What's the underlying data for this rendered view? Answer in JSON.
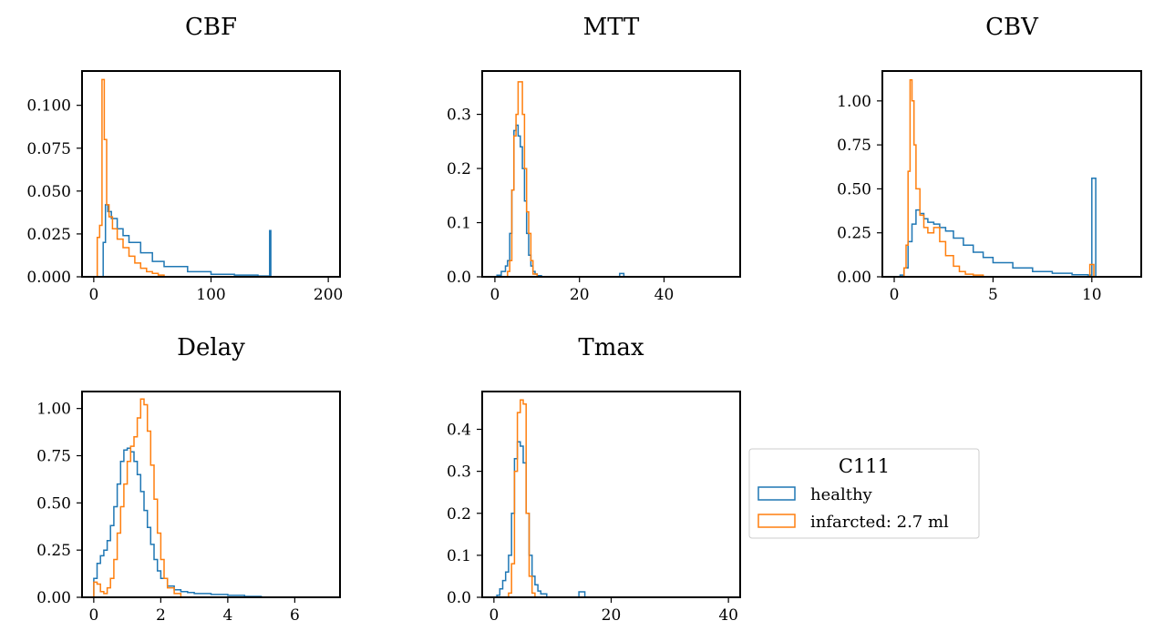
{
  "colors": {
    "healthy": "#1f77b4",
    "infarcted": "#ff7f0e"
  },
  "legend": {
    "title": "C111",
    "placement": "right-center",
    "entries": [
      "healthy",
      "infarcted: 2.7 ml"
    ]
  },
  "chart_data": [
    {
      "type": "histogram",
      "title": "CBF",
      "xlim": [
        -10,
        210
      ],
      "ylim": [
        0,
        0.12
      ],
      "xticks": [
        0,
        100,
        200
      ],
      "yticks": [
        0,
        0.025,
        0.05,
        0.075,
        0.1
      ],
      "ytick_labels": [
        "0.000",
        "0.025",
        "0.050",
        "0.075",
        "0.100"
      ],
      "series": [
        {
          "name": "healthy",
          "x": [
            5,
            8,
            10,
            12,
            15,
            20,
            25,
            30,
            40,
            50,
            60,
            80,
            100,
            120,
            140,
            149,
            150,
            151,
            160
          ],
          "y": [
            0.0,
            0.02,
            0.042,
            0.038,
            0.034,
            0.028,
            0.024,
            0.02,
            0.014,
            0.009,
            0.006,
            0.003,
            0.0015,
            0.001,
            0.0005,
            0.0005,
            0.027,
            0.0,
            0.0
          ]
        },
        {
          "name": "infarcted: 2.7 ml",
          "x": [
            3,
            5,
            7,
            9,
            11,
            13,
            16,
            20,
            25,
            30,
            35,
            40,
            45,
            50,
            55,
            60
          ],
          "y": [
            0.023,
            0.03,
            0.115,
            0.08,
            0.042,
            0.035,
            0.028,
            0.022,
            0.017,
            0.012,
            0.008,
            0.005,
            0.003,
            0.002,
            0.001,
            0.0
          ]
        }
      ]
    },
    {
      "type": "histogram",
      "title": "MTT",
      "xlim": [
        -3,
        58
      ],
      "ylim": [
        0,
        0.38
      ],
      "xticks": [
        0,
        20,
        40
      ],
      "yticks": [
        0,
        0.1,
        0.2,
        0.3
      ],
      "ytick_labels": [
        "0.0",
        "0.1",
        "0.2",
        "0.3"
      ],
      "series": [
        {
          "name": "healthy",
          "x": [
            0.5,
            1.5,
            2.5,
            3,
            3.5,
            4,
            4.5,
            5,
            5.5,
            6,
            6.5,
            7,
            7.5,
            8,
            8.5,
            9,
            9.5,
            10,
            11,
            29.5,
            30.5
          ],
          "y": [
            0.003,
            0.01,
            0.02,
            0.03,
            0.08,
            0.16,
            0.27,
            0.28,
            0.26,
            0.24,
            0.2,
            0.14,
            0.08,
            0.04,
            0.02,
            0.01,
            0.005,
            0.002,
            0.0,
            0.006,
            0.0
          ]
        },
        {
          "name": "infarcted: 2.7 ml",
          "x": [
            3,
            3.5,
            4,
            4.5,
            5,
            5.5,
            6,
            6.5,
            7,
            7.5,
            8,
            8.5,
            9,
            10
          ],
          "y": [
            0.01,
            0.03,
            0.16,
            0.26,
            0.3,
            0.36,
            0.36,
            0.3,
            0.2,
            0.12,
            0.08,
            0.03,
            0.005,
            0.0
          ]
        }
      ]
    },
    {
      "type": "histogram",
      "title": "CBV",
      "xlim": [
        -0.6,
        12.5
      ],
      "ylim": [
        0,
        1.17
      ],
      "xticks": [
        0,
        5,
        10
      ],
      "yticks": [
        0,
        0.25,
        0.5,
        0.75,
        1.0
      ],
      "ytick_labels": [
        "0.00",
        "0.25",
        "0.50",
        "0.75",
        "1.00"
      ],
      "series": [
        {
          "name": "healthy",
          "x": [
            0.3,
            0.5,
            0.7,
            0.9,
            1.1,
            1.3,
            1.5,
            1.7,
            2.0,
            2.3,
            2.6,
            3.0,
            3.5,
            4.0,
            4.5,
            5.0,
            6.0,
            7.0,
            8.0,
            9.0,
            9.8,
            10.0,
            10.2
          ],
          "y": [
            0.01,
            0.05,
            0.2,
            0.3,
            0.38,
            0.36,
            0.33,
            0.31,
            0.3,
            0.28,
            0.26,
            0.22,
            0.18,
            0.14,
            0.11,
            0.08,
            0.05,
            0.03,
            0.02,
            0.012,
            0.01,
            0.56,
            0.0
          ]
        },
        {
          "name": "infarcted: 2.7 ml",
          "x": [
            0.5,
            0.6,
            0.7,
            0.8,
            0.9,
            1.0,
            1.1,
            1.3,
            1.5,
            1.7,
            2.0,
            2.3,
            2.6,
            3.0,
            3.3,
            3.6,
            4.0,
            4.5,
            9.9,
            10.1
          ],
          "y": [
            0.05,
            0.18,
            0.6,
            1.12,
            1.0,
            0.75,
            0.5,
            0.35,
            0.28,
            0.25,
            0.28,
            0.2,
            0.12,
            0.06,
            0.03,
            0.015,
            0.01,
            0.0,
            0.07,
            0.0
          ]
        }
      ]
    },
    {
      "type": "histogram",
      "title": "Delay",
      "xlim": [
        -0.35,
        7.35
      ],
      "ylim": [
        0,
        1.09
      ],
      "xticks": [
        0,
        2,
        4,
        6
      ],
      "yticks": [
        0,
        0.25,
        0.5,
        0.75,
        1.0
      ],
      "ytick_labels": [
        "0.00",
        "0.25",
        "0.50",
        "0.75",
        "1.00"
      ],
      "series": [
        {
          "name": "healthy",
          "x": [
            0,
            0.1,
            0.2,
            0.3,
            0.4,
            0.5,
            0.6,
            0.7,
            0.8,
            0.9,
            1.0,
            1.1,
            1.2,
            1.3,
            1.4,
            1.5,
            1.6,
            1.7,
            1.8,
            1.9,
            2.0,
            2.2,
            2.4,
            2.6,
            2.8,
            3.0,
            3.5,
            4.0,
            4.5,
            5.0
          ],
          "y": [
            0.1,
            0.18,
            0.22,
            0.25,
            0.3,
            0.38,
            0.48,
            0.6,
            0.72,
            0.78,
            0.79,
            0.77,
            0.72,
            0.65,
            0.56,
            0.46,
            0.37,
            0.28,
            0.2,
            0.14,
            0.1,
            0.06,
            0.04,
            0.03,
            0.025,
            0.02,
            0.015,
            0.01,
            0.005,
            0.0
          ]
        },
        {
          "name": "infarcted: 2.7 ml",
          "x": [
            0,
            0.1,
            0.2,
            0.3,
            0.4,
            0.5,
            0.6,
            0.7,
            0.8,
            0.9,
            1.0,
            1.1,
            1.2,
            1.3,
            1.4,
            1.5,
            1.6,
            1.7,
            1.8,
            1.9,
            2.0,
            2.1,
            2.2,
            2.4,
            2.6
          ],
          "y": [
            0.08,
            0.07,
            0.03,
            0.02,
            0.05,
            0.1,
            0.2,
            0.34,
            0.48,
            0.6,
            0.72,
            0.8,
            0.85,
            0.95,
            1.05,
            1.02,
            0.88,
            0.7,
            0.52,
            0.34,
            0.2,
            0.1,
            0.05,
            0.02,
            0.0
          ]
        }
      ]
    },
    {
      "type": "histogram",
      "title": "Tmax",
      "xlim": [
        -2,
        42
      ],
      "ylim": [
        0,
        0.49
      ],
      "xticks": [
        0,
        20,
        40
      ],
      "yticks": [
        0,
        0.1,
        0.2,
        0.3,
        0.4
      ],
      "ytick_labels": [
        "0.0",
        "0.1",
        "0.2",
        "0.3",
        "0.4"
      ],
      "series": [
        {
          "name": "healthy",
          "x": [
            0.5,
            1,
            1.5,
            2,
            2.5,
            3,
            3.5,
            4,
            4.5,
            5,
            5.5,
            6,
            6.5,
            7,
            7.5,
            8,
            9,
            14.5,
            15.5
          ],
          "y": [
            0.005,
            0.02,
            0.04,
            0.06,
            0.1,
            0.2,
            0.33,
            0.37,
            0.36,
            0.32,
            0.2,
            0.1,
            0.05,
            0.03,
            0.015,
            0.008,
            0.0,
            0.013,
            0.0
          ]
        },
        {
          "name": "infarcted: 2.7 ml",
          "x": [
            2.5,
            3,
            3.5,
            4,
            4.5,
            5,
            5.5,
            6,
            6.5,
            7
          ],
          "y": [
            0.01,
            0.08,
            0.3,
            0.44,
            0.47,
            0.46,
            0.2,
            0.05,
            0.01,
            0.0
          ]
        }
      ]
    }
  ]
}
